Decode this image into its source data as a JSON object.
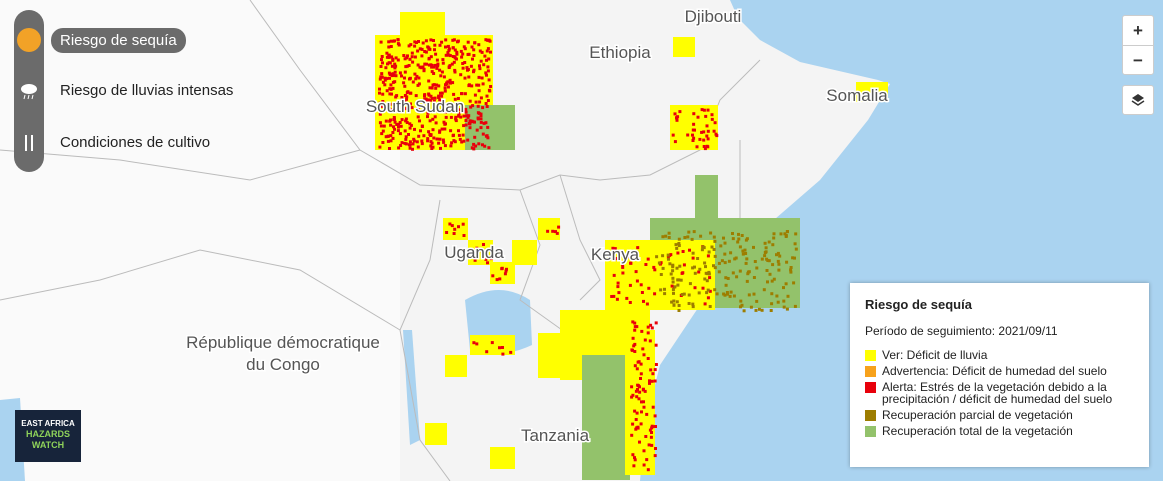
{
  "layers": [
    {
      "label": "Riesgo de sequía",
      "active": true
    },
    {
      "label": "Riesgo de lluvias intensas",
      "active": false
    },
    {
      "label": "Condiciones de cultivo",
      "active": false
    }
  ],
  "map": {
    "labels": [
      {
        "lines": [
          "Djibouti"
        ]
      },
      {
        "lines": [
          "Ethiopia"
        ]
      },
      {
        "lines": [
          "Somalia"
        ]
      },
      {
        "lines": [
          "South Sudan"
        ]
      },
      {
        "lines": [
          "Uganda"
        ]
      },
      {
        "lines": [
          "Kenya"
        ]
      },
      {
        "lines": [
          "République démocratique",
          "du Congo"
        ]
      },
      {
        "lines": [
          "Tanzania"
        ]
      }
    ]
  },
  "controls": {
    "zoom_in": "+",
    "zoom_out": "−"
  },
  "logo": {
    "lines": [
      "EAST AFRICA",
      "HAZARDS",
      "WATCH"
    ]
  },
  "legend": {
    "title": "Riesgo de sequía",
    "period": "Período de seguimiento: 2021/09/11",
    "items": [
      {
        "label": "Ver: Déficit de lluvia",
        "color": "#ffff00"
      },
      {
        "label": "Advertencia: Déficit de humedad del suelo",
        "color": "#f7a21b"
      },
      {
        "label": "Alerta: Estrés de la vegetación debido a la precipitación / déficit de humedad del suelo",
        "color": "#e8000b"
      },
      {
        "label": "Recuperación parcial de vegetación",
        "color": "#9d7d00"
      },
      {
        "label": "Recuperación total de la vegetación",
        "color": "#93c26b"
      }
    ]
  }
}
